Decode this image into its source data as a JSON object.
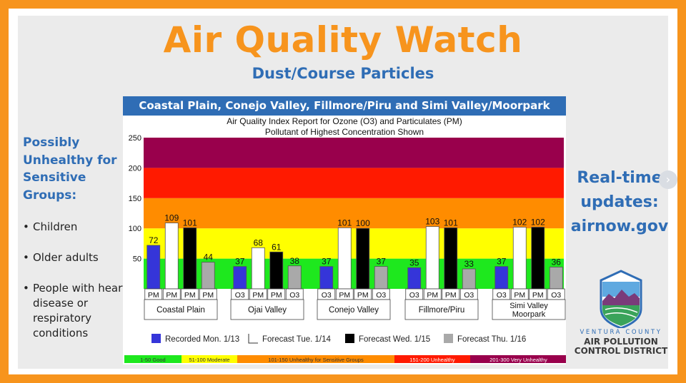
{
  "header": {
    "title": "Air Quality Watch",
    "subtitle": "Dust/Course Particles"
  },
  "left_panel": {
    "heading": "Possibly Unhealthy for Sensitive Groups:",
    "items": [
      "Children",
      "Older adults",
      "People with heart disease or respiratory conditions"
    ]
  },
  "right_panel": {
    "text_lines": [
      "Real-time",
      "updates:",
      "airnow.gov"
    ]
  },
  "nav": {
    "next_icon": "chevron-right-icon"
  },
  "logo": {
    "line1": "VENTURA COUNTY",
    "line2": "AIR POLLUTION",
    "line3": "CONTROL DISTRICT"
  },
  "colors": {
    "accent": "#f7941d",
    "brand_blue": "#2f6db5"
  },
  "chart_data": {
    "type": "bar",
    "header": "Coastal Plain, Conejo Valley, Fillmore/Piru and Simi Valley/Moorpark",
    "title": "Air Quality Index Report for Ozone (O3) and Particulates (PM)",
    "subtitle": "Pollutant of Highest Concentration Shown",
    "ylim": [
      0,
      260
    ],
    "yticks": [
      50,
      100,
      150,
      200,
      250
    ],
    "bands": [
      {
        "from": 0,
        "to": 50,
        "color": "#1ee81e"
      },
      {
        "from": 50,
        "to": 100,
        "color": "#ffff00"
      },
      {
        "from": 100,
        "to": 150,
        "color": "#ff8c00"
      },
      {
        "from": 150,
        "to": 200,
        "color": "#ff1a00"
      },
      {
        "from": 200,
        "to": 250,
        "color": "#99004c"
      }
    ],
    "legend_scale": [
      {
        "label": "1-50 Good",
        "color": "#1ee81e"
      },
      {
        "label": "51-100 Moderate",
        "color": "#ffff00"
      },
      {
        "label": "101-150 Unhealthy for Sensitive Groups",
        "color": "#ff8c00"
      },
      {
        "label": "151-200 Unhealthy",
        "color": "#ff1a00"
      },
      {
        "label": "201-300 Very Unhealthy",
        "color": "#99004c"
      }
    ],
    "categories": [
      "Coastal Plain",
      "Ojai Valley",
      "Conejo Valley",
      "Fillmore/Piru",
      "Simi Valley Moorpark"
    ],
    "series": [
      {
        "name": "Recorded Mon. 1/13",
        "color": "#3535d9",
        "values": [
          72,
          37,
          37,
          35,
          37
        ],
        "pollutants": [
          "PM",
          "O3",
          "O3",
          "O3",
          "O3"
        ]
      },
      {
        "name": "Forecast Tue. 1/14",
        "color": "#ffffff",
        "values": [
          109,
          68,
          101,
          103,
          102
        ],
        "pollutants": [
          "PM",
          "PM",
          "PM",
          "PM",
          "PM"
        ]
      },
      {
        "name": "Forecast Wed. 1/15",
        "color": "#000000",
        "values": [
          101,
          61,
          100,
          101,
          102
        ],
        "pollutants": [
          "PM",
          "PM",
          "PM",
          "PM",
          "PM"
        ]
      },
      {
        "name": "Forecast Thu. 1/16",
        "color": "#a9a9a9",
        "values": [
          44,
          38,
          37,
          33,
          36
        ],
        "pollutants": [
          "PM",
          "O3",
          "O3",
          "O3",
          "O3"
        ]
      }
    ]
  }
}
